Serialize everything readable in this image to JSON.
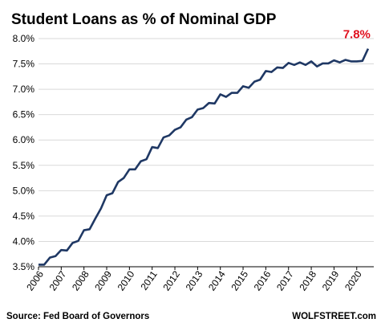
{
  "colors": {
    "line": "#1f3864",
    "grid": "#d9d9d9",
    "axis": "#000000",
    "annotation": "#e0101e"
  },
  "footer": {
    "source": "Source: Fed Board of Governors",
    "brand": "WOLFSTREET.com"
  },
  "chart_data": {
    "type": "line",
    "title": "Student Loans as % of Nominal GDP",
    "xlabel": "",
    "ylabel": "",
    "x_tick_labels": [
      "2006",
      "2007",
      "2008",
      "2009",
      "2010",
      "2011",
      "2012",
      "2013",
      "2014",
      "2015",
      "2016",
      "2017",
      "2018",
      "2019",
      "2020"
    ],
    "y_tick_labels": [
      "8.0%",
      "7.5%",
      "7.0%",
      "6.5%",
      "6.0%",
      "5.5%",
      "5.0%",
      "4.5%",
      "4.0%",
      "3.5%"
    ],
    "ylim": [
      3.5,
      8.0
    ],
    "xlim": [
      2006.0,
      2020.75
    ],
    "grid": "horizontal",
    "annotation": {
      "text": "7.8%",
      "x": 2020.5,
      "y": 7.8
    },
    "series": [
      {
        "x": [
          2006.0,
          2006.25,
          2006.5,
          2006.75,
          2007.0,
          2007.25,
          2007.5,
          2007.75,
          2008.0,
          2008.25,
          2008.5,
          2008.75,
          2009.0,
          2009.25,
          2009.5,
          2009.75,
          2010.0,
          2010.25,
          2010.5,
          2010.75,
          2011.0,
          2011.25,
          2011.5,
          2011.75,
          2012.0,
          2012.25,
          2012.5,
          2012.75,
          2013.0,
          2013.25,
          2013.5,
          2013.75,
          2014.0,
          2014.25,
          2014.5,
          2014.75,
          2015.0,
          2015.25,
          2015.5,
          2015.75,
          2016.0,
          2016.25,
          2016.5,
          2016.75,
          2017.0,
          2017.25,
          2017.5,
          2017.75,
          2018.0,
          2018.25,
          2018.5,
          2018.75,
          2019.0,
          2019.25,
          2019.5,
          2019.75,
          2020.0,
          2020.25,
          2020.5
        ],
        "values": [
          3.54,
          3.54,
          3.68,
          3.71,
          3.83,
          3.82,
          3.97,
          4.01,
          4.22,
          4.24,
          4.45,
          4.65,
          4.91,
          4.95,
          5.17,
          5.25,
          5.42,
          5.42,
          5.58,
          5.62,
          5.86,
          5.84,
          6.05,
          6.09,
          6.2,
          6.25,
          6.4,
          6.45,
          6.6,
          6.63,
          6.73,
          6.72,
          6.9,
          6.85,
          6.93,
          6.93,
          7.06,
          7.03,
          7.15,
          7.19,
          7.36,
          7.34,
          7.43,
          7.42,
          7.52,
          7.48,
          7.53,
          7.48,
          7.55,
          7.45,
          7.51,
          7.51,
          7.57,
          7.53,
          7.58,
          7.55,
          7.55,
          7.56,
          7.8
        ]
      }
    ]
  }
}
